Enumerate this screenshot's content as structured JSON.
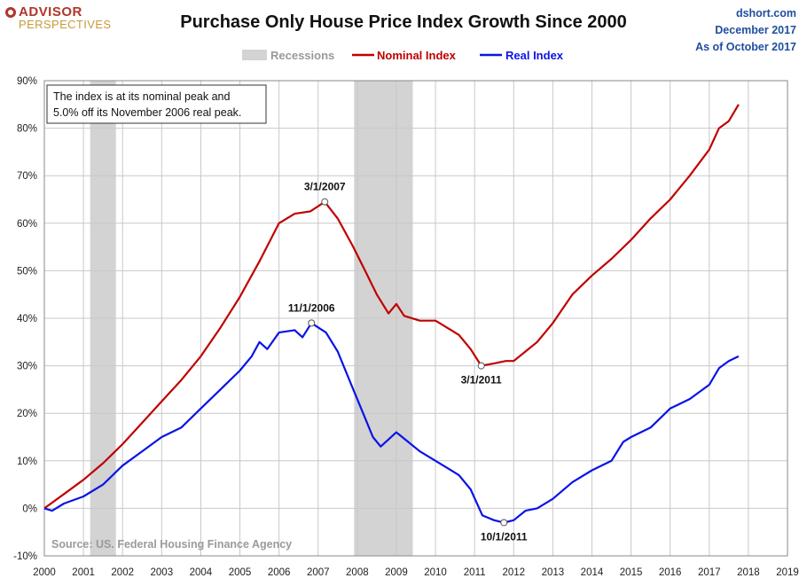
{
  "logo": {
    "line1": "ADVISOR",
    "line2": "PERSPECTIVES"
  },
  "corner": {
    "site": "dshort.com",
    "date": "December 2017",
    "asof": "As of October 2017"
  },
  "colors": {
    "nominal": "#c00000",
    "real": "#0a14e6",
    "recession": "#d3d3d3",
    "grid": "#c8c8c8"
  },
  "chart_data": {
    "type": "line",
    "title": "Purchase Only House Price Index Growth Since 2000",
    "source": "Source: US. Federal Housing Finance Agency",
    "note": [
      "The index is at its nominal peak and",
      "5.0% off its November 2006 real peak."
    ],
    "legend": {
      "placement": "top-center",
      "recession_label": "Recessions"
    },
    "x_range": [
      2000,
      2019
    ],
    "y_range": [
      -10,
      90
    ],
    "x_ticks": [
      "2000",
      "2001",
      "2002",
      "2003",
      "2004",
      "2005",
      "2006",
      "2007",
      "2008",
      "2009",
      "2010",
      "2011",
      "2012",
      "2013",
      "2014",
      "2015",
      "2016",
      "2017",
      "2018",
      "2019"
    ],
    "y_ticks": [
      "-10%",
      "0%",
      "10%",
      "20%",
      "30%",
      "40%",
      "50%",
      "60%",
      "70%",
      "80%",
      "90%"
    ],
    "grid": true,
    "recessions": [
      [
        2001.17,
        2001.83
      ],
      [
        2007.92,
        2009.42
      ]
    ],
    "series": [
      {
        "name": "Nominal Index",
        "color": "#c00000",
        "points": [
          [
            2000.0,
            0
          ],
          [
            2000.5,
            3
          ],
          [
            2001.0,
            6
          ],
          [
            2001.5,
            9.5
          ],
          [
            2002.0,
            13.5
          ],
          [
            2002.5,
            18
          ],
          [
            2003.0,
            22.5
          ],
          [
            2003.5,
            27
          ],
          [
            2004.0,
            32
          ],
          [
            2004.5,
            38
          ],
          [
            2005.0,
            44.5
          ],
          [
            2005.5,
            52
          ],
          [
            2006.0,
            60
          ],
          [
            2006.4,
            62
          ],
          [
            2006.8,
            62.5
          ],
          [
            2007.17,
            64.5
          ],
          [
            2007.5,
            61
          ],
          [
            2007.9,
            55
          ],
          [
            2008.2,
            50
          ],
          [
            2008.5,
            45
          ],
          [
            2008.8,
            41
          ],
          [
            2009.0,
            43
          ],
          [
            2009.2,
            40.5
          ],
          [
            2009.6,
            39.5
          ],
          [
            2010.0,
            39.5
          ],
          [
            2010.3,
            38
          ],
          [
            2010.6,
            36.5
          ],
          [
            2010.9,
            33.5
          ],
          [
            2011.17,
            30
          ],
          [
            2011.5,
            30.5
          ],
          [
            2011.8,
            31
          ],
          [
            2012.0,
            31
          ],
          [
            2012.3,
            33
          ],
          [
            2012.6,
            35
          ],
          [
            2013.0,
            39
          ],
          [
            2013.5,
            45
          ],
          [
            2014.0,
            49
          ],
          [
            2014.5,
            52.5
          ],
          [
            2015.0,
            56.5
          ],
          [
            2015.5,
            61
          ],
          [
            2016.0,
            65
          ],
          [
            2016.5,
            70
          ],
          [
            2017.0,
            75.5
          ],
          [
            2017.25,
            80
          ],
          [
            2017.5,
            81.5
          ],
          [
            2017.75,
            85
          ]
        ]
      },
      {
        "name": "Real Index",
        "color": "#0a14e6",
        "points": [
          [
            2000.0,
            0
          ],
          [
            2000.2,
            -0.5
          ],
          [
            2000.5,
            1
          ],
          [
            2001.0,
            2.5
          ],
          [
            2001.5,
            5
          ],
          [
            2002.0,
            9
          ],
          [
            2002.5,
            12
          ],
          [
            2003.0,
            15
          ],
          [
            2003.5,
            17
          ],
          [
            2004.0,
            21
          ],
          [
            2004.5,
            25
          ],
          [
            2005.0,
            29
          ],
          [
            2005.3,
            32
          ],
          [
            2005.5,
            35
          ],
          [
            2005.7,
            33.5
          ],
          [
            2006.0,
            37
          ],
          [
            2006.4,
            37.5
          ],
          [
            2006.6,
            36
          ],
          [
            2006.83,
            39
          ],
          [
            2007.2,
            37
          ],
          [
            2007.5,
            33
          ],
          [
            2007.9,
            25
          ],
          [
            2008.2,
            19
          ],
          [
            2008.4,
            15
          ],
          [
            2008.6,
            13
          ],
          [
            2008.8,
            14.5
          ],
          [
            2009.0,
            16
          ],
          [
            2009.3,
            14
          ],
          [
            2009.6,
            12
          ],
          [
            2010.0,
            10
          ],
          [
            2010.3,
            8.5
          ],
          [
            2010.6,
            7
          ],
          [
            2010.9,
            4
          ],
          [
            2011.2,
            -1.5
          ],
          [
            2011.5,
            -2.5
          ],
          [
            2011.75,
            -3
          ],
          [
            2012.0,
            -2.5
          ],
          [
            2012.3,
            -0.5
          ],
          [
            2012.6,
            0
          ],
          [
            2013.0,
            2
          ],
          [
            2013.5,
            5.5
          ],
          [
            2014.0,
            8
          ],
          [
            2014.5,
            10
          ],
          [
            2014.8,
            14
          ],
          [
            2015.0,
            15
          ],
          [
            2015.5,
            17
          ],
          [
            2016.0,
            21
          ],
          [
            2016.5,
            23
          ],
          [
            2017.0,
            26
          ],
          [
            2017.25,
            29.5
          ],
          [
            2017.5,
            31
          ],
          [
            2017.75,
            32
          ]
        ]
      }
    ],
    "annotations": [
      {
        "label": "3/1/2007",
        "series": 0,
        "x": 2007.17,
        "y": 64.5,
        "pos": "above"
      },
      {
        "label": "11/1/2006",
        "series": 1,
        "x": 2006.83,
        "y": 39,
        "pos": "above"
      },
      {
        "label": "3/1/2011",
        "series": 0,
        "x": 2011.17,
        "y": 30,
        "pos": "below"
      },
      {
        "label": "10/1/2011",
        "series": 1,
        "x": 2011.75,
        "y": -3,
        "pos": "below"
      }
    ]
  }
}
